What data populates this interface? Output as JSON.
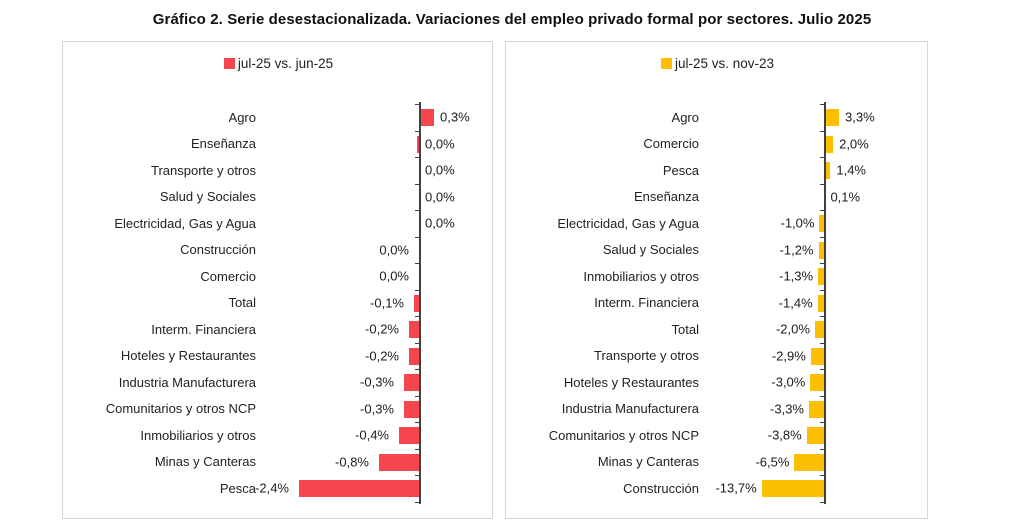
{
  "title": "Gráfico 2. Serie desestacionalizada. Variaciones del empleo privado formal por sectores. Julio 2025",
  "chart_data": [
    {
      "type": "bar",
      "orientation": "horizontal",
      "legend": "jul-25 vs. jun-25",
      "legend_swatch": "red-square-icon",
      "bar_color": "#F4464C",
      "axis_color": "#404040",
      "grid": false,
      "legend_position": "top-center",
      "value_format": "comma-decimal-percent",
      "xlim": [
        -3.2,
        1.6
      ],
      "categories": [
        "Agro",
        "Enseñanza",
        "Transporte y otros",
        "Salud y Sociales",
        "Electricidad, Gas y Agua",
        "Construcción",
        "Comercio",
        "Total",
        "Interm. Financiera",
        "Hoteles y Restaurantes",
        "Industria Manufacturera",
        "Comunitarios y otros NCP",
        "Inmobiliarios y otros",
        "Minas y Canteras",
        "Pesca"
      ],
      "values": [
        0.3,
        -0.05,
        0,
        0,
        0,
        0,
        0,
        -0.1,
        -0.2,
        -0.2,
        -0.3,
        -0.3,
        -0.4,
        -0.8,
        -2.4
      ],
      "labels": [
        "0,3%",
        "0,0%",
        "0,0%",
        "0,0%",
        "0,0%",
        "0,0%",
        "0,0%",
        "-0,1%",
        "-0,2%",
        "-0,2%",
        "-0,3%",
        "-0,3%",
        "-0,4%",
        "-0,8%",
        "-2,4%"
      ],
      "label_sides": [
        "right",
        "right",
        "right",
        "right",
        "right",
        "left",
        "left",
        "left",
        "left",
        "left",
        "left",
        "left",
        "left",
        "left",
        "left"
      ]
    },
    {
      "type": "bar",
      "orientation": "horizontal",
      "legend": "jul-25 vs. nov-23",
      "legend_swatch": "yellow-square-icon",
      "bar_color": "#FCBF04",
      "axis_color": "#404040",
      "grid": false,
      "legend_position": "top-center",
      "value_format": "comma-decimal-percent",
      "xlim": [
        -26,
        22
      ],
      "categories": [
        "Agro",
        "Comercio",
        "Pesca",
        "Enseñanza",
        "Electricidad, Gas y Agua",
        "Salud y Sociales",
        "Inmobiliarios y otros",
        "Interm. Financiera",
        "Total",
        "Transporte y otros",
        "Hoteles y Restaurantes",
        "Industria Manufacturera",
        "Comunitarios y otros NCP",
        "Minas y Canteras",
        "Construcción"
      ],
      "values": [
        3.3,
        2.0,
        1.4,
        0.1,
        -1.0,
        -1.2,
        -1.3,
        -1.4,
        -2.0,
        -2.9,
        -3.0,
        -3.3,
        -3.8,
        -6.5,
        -13.7
      ],
      "labels": [
        "3,3%",
        "2,0%",
        "1,4%",
        "0,1%",
        "-1,0%",
        "-1,2%",
        "-1,3%",
        "-1,4%",
        "-2,0%",
        "-2,9%",
        "-3,0%",
        "-3,3%",
        "-3,8%",
        "-6,5%",
        "-13,7%"
      ],
      "label_sides": [
        "right",
        "right",
        "right",
        "right",
        "left",
        "left",
        "left",
        "left",
        "left",
        "left",
        "left",
        "left",
        "left",
        "left",
        "left"
      ]
    }
  ]
}
